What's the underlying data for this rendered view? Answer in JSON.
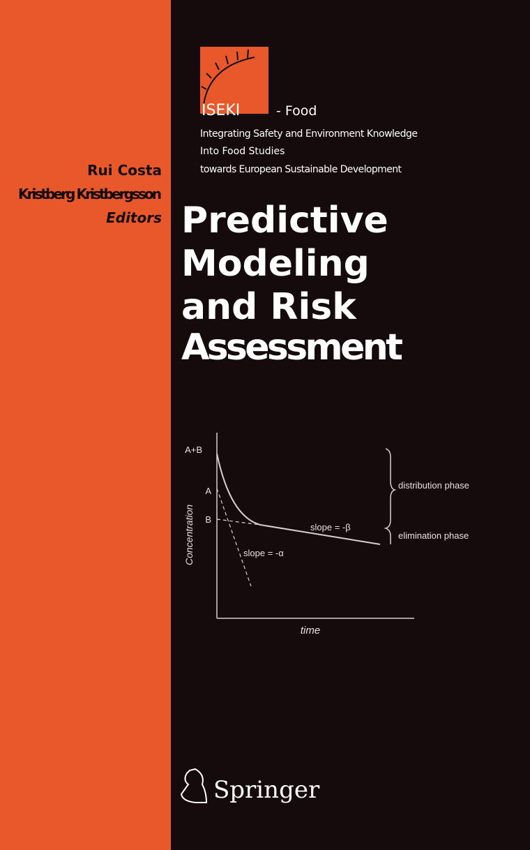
{
  "series": {
    "name": "ISEKI",
    "suffix": "- Food",
    "subtitle": [
      "Integrating Safety and Environment Knowledge",
      "Into Food Studies",
      "towards European Sustainable Development"
    ]
  },
  "editors": {
    "names": [
      "Rui Costa",
      "Kristberg Kristbergsson"
    ],
    "role": "Editors"
  },
  "title": [
    "Predictive",
    "Modeling",
    "and Risk",
    "Assessment"
  ],
  "figure": {
    "y_axis_label": "Concentration",
    "x_axis_label": "time",
    "y_labels": [
      "A+B",
      "A",
      "B"
    ],
    "slope_beta": "slope = -β",
    "slope_alpha": "slope = -α",
    "phases": [
      "distribution phase",
      "elimination phase"
    ]
  },
  "publisher": "Springer"
}
